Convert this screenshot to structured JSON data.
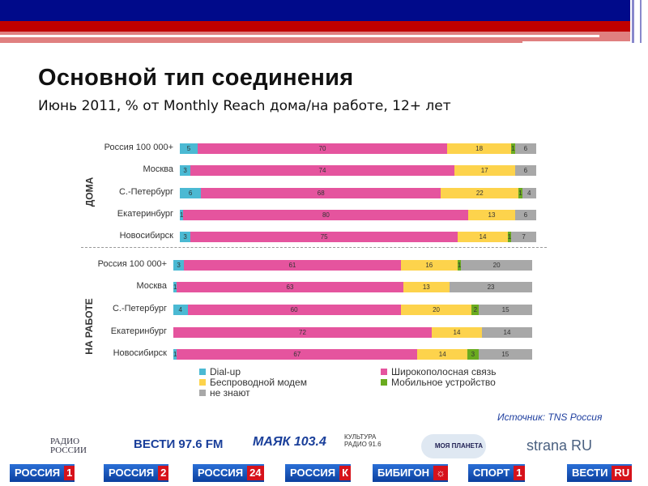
{
  "header": {
    "title": "Основной тип соединения",
    "subtitle": "Июнь 2011, % от Monthly Reach дома/на работе, 12+ лет"
  },
  "source": "Источник: TNS Россия",
  "chart_data": {
    "type": "bar",
    "stacked": true,
    "orientation": "horizontal",
    "unit": "%",
    "series_names": [
      "Dial-up",
      "Широкополосная связь",
      "Беспроводной модем",
      "Мобильное устройство",
      "не знают"
    ],
    "colors": [
      "#4bb9d3",
      "#e5549e",
      "#fdd34c",
      "#6aab1f",
      "#a8a8a8"
    ],
    "legend": {
      "items": [
        "Dial-up",
        "Широкополосная связь",
        "Беспроводной модем",
        "Мобильное устройство",
        "не знают"
      ],
      "placement": "bottom"
    },
    "groups": [
      {
        "label": "ДОМА",
        "categories": [
          "Россия 100 000+",
          "Москва",
          "С.-Петербург",
          "Екатеринбург",
          "Новосибирск"
        ],
        "values": [
          [
            5,
            70,
            18,
            1,
            6
          ],
          [
            3,
            74,
            17,
            0,
            6
          ],
          [
            6,
            68,
            22,
            1,
            4
          ],
          [
            1,
            80,
            13,
            0,
            6
          ],
          [
            3,
            75,
            14,
            1,
            7
          ]
        ]
      },
      {
        "label": "НА РАБОТЕ",
        "categories": [
          "Россия 100 000+",
          "Москва",
          "С.-Петербург",
          "Екатеринбург",
          "Новосибирск"
        ],
        "values": [
          [
            3,
            61,
            16,
            1,
            20
          ],
          [
            1,
            63,
            13,
            0,
            23
          ],
          [
            4,
            60,
            20,
            2,
            15
          ],
          [
            0,
            72,
            14,
            0,
            14
          ],
          [
            1,
            67,
            14,
            3,
            15
          ]
        ]
      }
    ]
  },
  "logos": {
    "row1": [
      "РАДИО РОССИИ",
      "ВЕСТИ 97.6 FM",
      "МАЯК 103.4",
      "КУЛЬТУРА РАДИО 91.6",
      "МОЯ ПЛАНЕТА",
      "strana RU"
    ],
    "row2": [
      [
        "РОССИЯ",
        "1"
      ],
      [
        "РОССИЯ",
        "2"
      ],
      [
        "РОССИЯ",
        "24"
      ],
      [
        "РОССИЯ",
        "К"
      ],
      [
        "БИБИГОН",
        "☼"
      ],
      [
        "СПОРТ",
        "1"
      ],
      [
        "ВЕСТИ",
        "RU"
      ]
    ]
  }
}
